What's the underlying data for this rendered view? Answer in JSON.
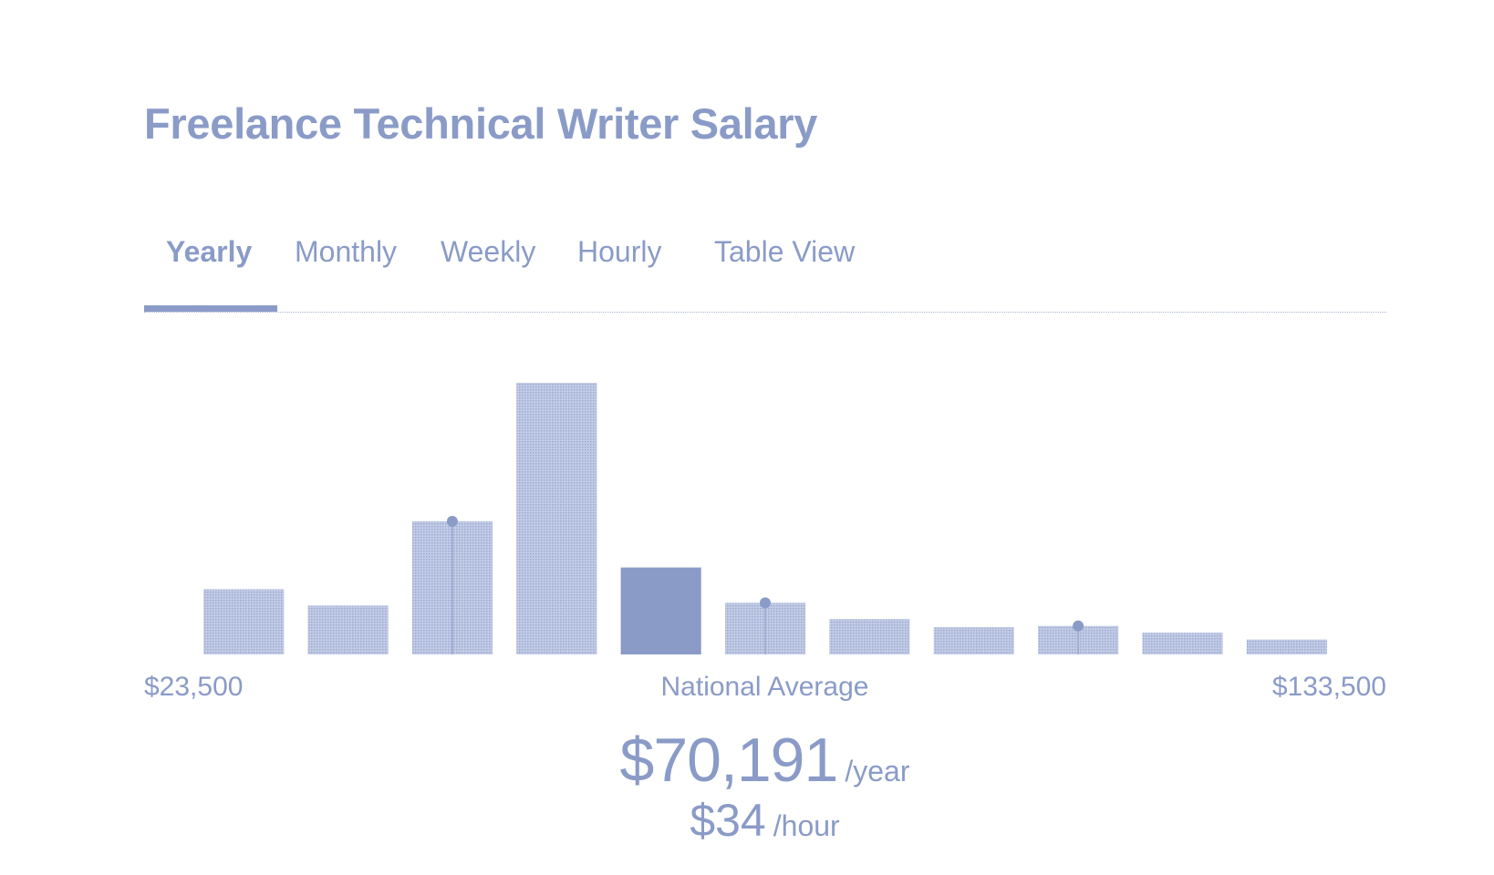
{
  "title": "Freelance Technical Writer Salary",
  "tabs": [
    {
      "label": "Yearly",
      "active": true
    },
    {
      "label": "Monthly",
      "active": false
    },
    {
      "label": "Weekly",
      "active": false
    },
    {
      "label": "Hourly",
      "active": false
    },
    {
      "label": "Table View",
      "active": false
    }
  ],
  "axis": {
    "min_label": "$23,500",
    "mid_label": "National Average",
    "max_label": "$133,500"
  },
  "summary": {
    "yearly_amount": "$70,191",
    "yearly_unit": "/year",
    "hourly_amount": "$34",
    "hourly_unit": "/hour"
  },
  "colors": {
    "accent": "#8a9bc7",
    "bar_fill": "#b4c0df",
    "bar_highlight": "#8a9bc7"
  },
  "chart_data": {
    "type": "bar",
    "categories": [
      "1",
      "2",
      "3",
      "4",
      "5",
      "6",
      "7",
      "8",
      "9",
      "10",
      "11"
    ],
    "values": [
      24,
      18,
      49,
      100,
      32,
      19,
      13,
      10,
      10.5,
      8,
      5.5
    ],
    "highlight_index": 4,
    "markers": [
      2,
      5,
      8
    ],
    "x_range_labels": [
      "$23,500",
      "$133,500"
    ],
    "ylim": [
      0,
      100
    ],
    "grid": false,
    "legend": "none"
  }
}
